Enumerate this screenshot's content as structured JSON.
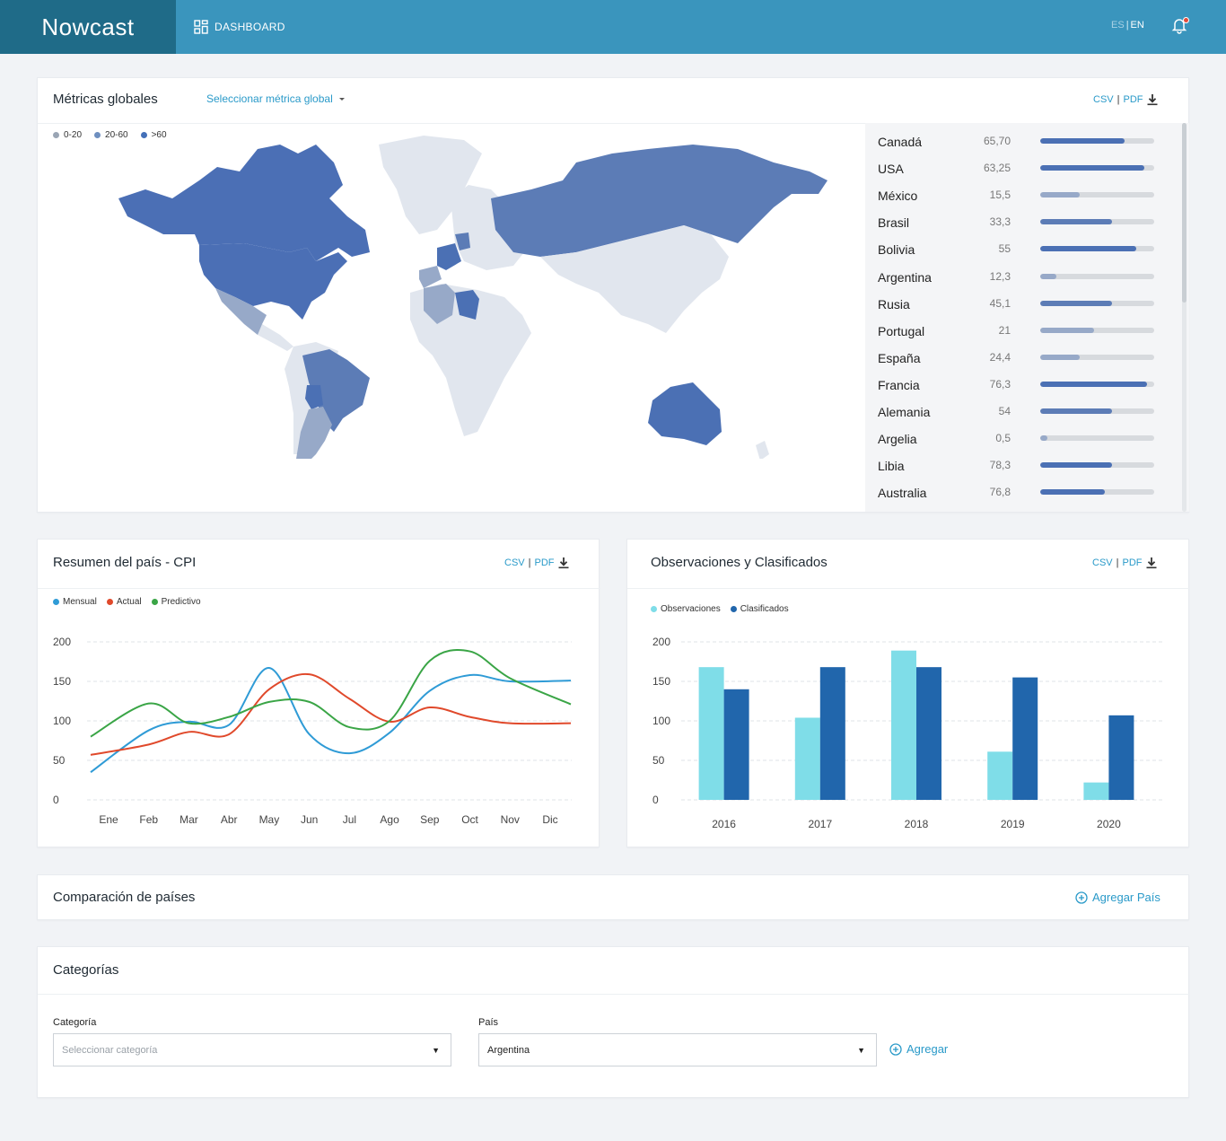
{
  "header": {
    "brand": "Nowcast",
    "nav_dashboard": "DASHBOARD",
    "lang_es": "ES",
    "lang_sep": "|",
    "lang_en": "EN"
  },
  "colors": {
    "topbar": "#3a95bd",
    "brand_bg": "#1f6b88",
    "accent": "#2a9ac9",
    "mensual": "#2f9bd6",
    "actual": "#e0492b",
    "predictivo": "#3aa546",
    "observaciones": "#7fdde8",
    "clasificados": "#2166ac"
  },
  "global_metrics": {
    "title": "Métricas globales",
    "select_label": "Seleccionar métrica global",
    "export": {
      "csv": "CSV",
      "sep": "|",
      "pdf": "PDF"
    },
    "legend": [
      {
        "label": "0-20",
        "color": "#9aa5b4"
      },
      {
        "label": "20-60",
        "color": "#6e8fbf"
      },
      {
        "label": ">60",
        "color": "#4470b8"
      }
    ],
    "countries": [
      {
        "name": "Canadá",
        "value": "65,70",
        "level": 0.74,
        "color": "#4b70b4"
      },
      {
        "name": "USA",
        "value": "63,25",
        "level": 0.91,
        "color": "#4b70b4"
      },
      {
        "name": "México",
        "value": "15,5",
        "level": 0.35,
        "color": "#97a9c8"
      },
      {
        "name": "Brasil",
        "value": "33,3",
        "level": 0.63,
        "color": "#5c7cb6"
      },
      {
        "name": "Bolivia",
        "value": "55",
        "level": 0.84,
        "color": "#4b70b4"
      },
      {
        "name": "Argentina",
        "value": "12,3",
        "level": 0.14,
        "color": "#97a9c8"
      },
      {
        "name": "Rusia",
        "value": "45,1",
        "level": 0.63,
        "color": "#5c7cb6"
      },
      {
        "name": "Portugal",
        "value": "21",
        "level": 0.47,
        "color": "#97a9c8"
      },
      {
        "name": "España",
        "value": "24,4",
        "level": 0.35,
        "color": "#97a9c8"
      },
      {
        "name": "Francia",
        "value": "76,3",
        "level": 0.94,
        "color": "#4b70b4"
      },
      {
        "name": "Alemania",
        "value": "54",
        "level": 0.63,
        "color": "#5c7cb6"
      },
      {
        "name": "Argelia",
        "value": "0,5",
        "level": 0.06,
        "color": "#97a9c8"
      },
      {
        "name": "Libia",
        "value": "78,3",
        "level": 0.63,
        "color": "#4b70b4"
      },
      {
        "name": "Australia",
        "value": "76,8",
        "level": 0.57,
        "color": "#4b70b4"
      }
    ]
  },
  "cpi": {
    "title": "Resumen del país - CPI",
    "export": {
      "csv": "CSV",
      "sep": "|",
      "pdf": "PDF"
    },
    "legend": [
      "Mensual",
      "Actual",
      "Predictivo"
    ]
  },
  "observations": {
    "title": "Observaciones y Clasificados",
    "export": {
      "csv": "CSV",
      "sep": "|",
      "pdf": "PDF"
    },
    "legend": [
      "Observaciones",
      "Clasificados"
    ]
  },
  "chart_data": [
    {
      "type": "line",
      "categories": [
        "Ene",
        "Feb",
        "Mar",
        "Abr",
        "May",
        "Jun",
        "Jul",
        "Ago",
        "Sep",
        "Oct",
        "Nov",
        "Dic"
      ],
      "yticks": [
        0,
        50,
        100,
        150,
        200
      ],
      "ylim": [
        0,
        200
      ],
      "grid": true,
      "legend_position": "top-left",
      "series": [
        {
          "name": "Mensual",
          "values": [
            35,
            88,
            99,
            95,
            167,
            83,
            59,
            85,
            138,
            158,
            150,
            151
          ]
        },
        {
          "name": "Actual",
          "values": [
            57,
            70,
            86,
            83,
            140,
            159,
            128,
            99,
            117,
            105,
            97,
            97
          ]
        },
        {
          "name": "Predictivo",
          "values": [
            80,
            122,
            97,
            105,
            124,
            124,
            92,
            100,
            176,
            188,
            154,
            121
          ]
        }
      ]
    },
    {
      "type": "bar",
      "categories": [
        "2016",
        "2017",
        "2018",
        "2019",
        "2020"
      ],
      "yticks": [
        0,
        50,
        100,
        150,
        200
      ],
      "ylim": [
        0,
        200
      ],
      "grid": true,
      "legend_position": "top-left",
      "series": [
        {
          "name": "Observaciones",
          "values": [
            168,
            104,
            189,
            61,
            22
          ]
        },
        {
          "name": "Clasificados",
          "values": [
            140,
            168,
            168,
            155,
            107
          ]
        }
      ]
    }
  ],
  "comparison": {
    "title": "Comparación de países",
    "add_label": "Agregar País"
  },
  "categories": {
    "title": "Categorías",
    "categoria_label": "Categoría",
    "categoria_placeholder": "Seleccionar categoría",
    "pais_label": "País",
    "pais_value": "Argentina",
    "add_label": "Agregar"
  }
}
